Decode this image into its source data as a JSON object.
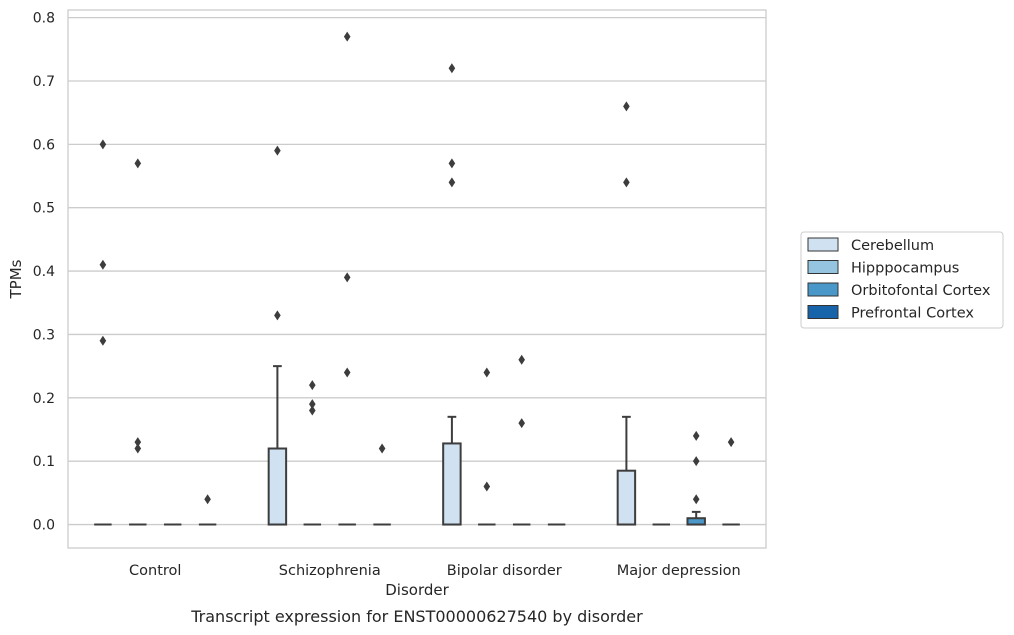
{
  "chart_data": {
    "type": "box",
    "title": "Transcript expression for ENST00000627540 by disorder",
    "xlabel": "Disorder",
    "ylabel": "TPMs",
    "ylim": [
      -0.037,
      0.812
    ],
    "yticks": [
      "0.0",
      "0.1",
      "0.2",
      "0.3",
      "0.4",
      "0.5",
      "0.6",
      "0.7",
      "0.8"
    ],
    "categories": [
      "Control",
      "Schizophrenia",
      "Bipolar disorder",
      "Major depression"
    ],
    "grid": true,
    "legend_position": "right",
    "series": [
      {
        "name": "Cerebellum",
        "color": "#d0e1f2",
        "boxes": [
          {
            "q1": 0,
            "median": 0,
            "q3": 0,
            "whisker_low": 0,
            "whisker_high": 0,
            "outliers": [
              0.6,
              0.41,
              0.29
            ]
          },
          {
            "q1": 0,
            "median": 0,
            "q3": 0.12,
            "whisker_low": 0,
            "whisker_high": 0.25,
            "outliers": [
              0.59,
              0.33
            ]
          },
          {
            "q1": 0,
            "median": 0,
            "q3": 0.128,
            "whisker_low": 0,
            "whisker_high": 0.17,
            "outliers": [
              0.72,
              0.57,
              0.54
            ]
          },
          {
            "q1": 0,
            "median": 0,
            "q3": 0.085,
            "whisker_low": 0,
            "whisker_high": 0.17,
            "outliers": [
              0.66,
              0.54
            ]
          }
        ]
      },
      {
        "name": "Hipppocampus",
        "color": "#94c4df",
        "boxes": [
          {
            "q1": 0,
            "median": 0,
            "q3": 0,
            "whisker_low": 0,
            "whisker_high": 0,
            "outliers": [
              0.57,
              0.13,
              0.12
            ]
          },
          {
            "q1": 0,
            "median": 0,
            "q3": 0,
            "whisker_low": 0,
            "whisker_high": 0,
            "outliers": [
              0.22,
              0.19,
              0.18
            ]
          },
          {
            "q1": 0,
            "median": 0,
            "q3": 0,
            "whisker_low": 0,
            "whisker_high": 0,
            "outliers": [
              0.24,
              0.06
            ]
          },
          {
            "q1": 0,
            "median": 0,
            "q3": 0,
            "whisker_low": 0,
            "whisker_high": 0,
            "outliers": []
          }
        ]
      },
      {
        "name": "Orbitofontal Cortex",
        "color": "#4a98c9",
        "boxes": [
          {
            "q1": 0,
            "median": 0,
            "q3": 0,
            "whisker_low": 0,
            "whisker_high": 0,
            "outliers": []
          },
          {
            "q1": 0,
            "median": 0,
            "q3": 0,
            "whisker_low": 0,
            "whisker_high": 0,
            "outliers": [
              0.77,
              0.39,
              0.24
            ]
          },
          {
            "q1": 0,
            "median": 0,
            "q3": 0,
            "whisker_low": 0,
            "whisker_high": 0,
            "outliers": [
              0.26,
              0.16
            ]
          },
          {
            "q1": 0,
            "median": 0,
            "q3": 0.01,
            "whisker_low": 0,
            "whisker_high": 0.02,
            "outliers": [
              0.14,
              0.1,
              0.04
            ]
          }
        ]
      },
      {
        "name": "Prefrontal Cortex",
        "color": "#1764ab",
        "boxes": [
          {
            "q1": 0,
            "median": 0,
            "q3": 0,
            "whisker_low": 0,
            "whisker_high": 0,
            "outliers": [
              0.04
            ]
          },
          {
            "q1": 0,
            "median": 0,
            "q3": 0,
            "whisker_low": 0,
            "whisker_high": 0,
            "outliers": [
              0.12
            ]
          },
          {
            "q1": 0,
            "median": 0,
            "q3": 0,
            "whisker_low": 0,
            "whisker_high": 0,
            "outliers": []
          },
          {
            "q1": 0,
            "median": 0,
            "q3": 0,
            "whisker_low": 0,
            "whisker_high": 0,
            "outliers": [
              0.13
            ]
          }
        ]
      }
    ]
  }
}
